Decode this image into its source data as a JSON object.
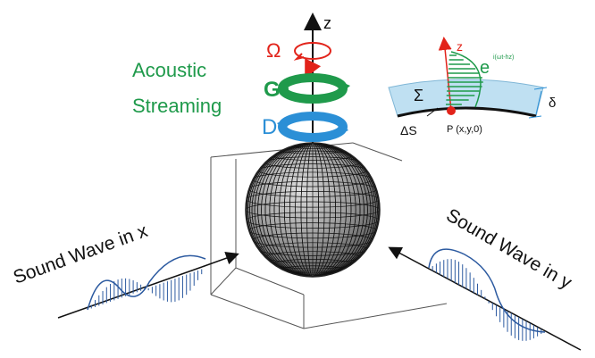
{
  "labels": {
    "acoustic": "Acoustic",
    "streaming": "Streaming",
    "omega": "Ω",
    "g": "G",
    "d": "D",
    "z_main": "z",
    "z_inset": "z",
    "sigma": "Σ",
    "delta_s": "ΔS",
    "point_p": "P (x,y,0)",
    "delta": "δ",
    "exp_base": "e",
    "exp_power": "i(ωt-hz)",
    "wave_x": "Sound Wave in x",
    "wave_y": "Sound Wave in y"
  },
  "colors": {
    "omega": "#e2231a",
    "g": "#1f9a4b",
    "d": "#2b8fd6",
    "acoustic_text": "#1f9a4b",
    "inset_band": "#bfe0f2",
    "inset_hatch": "#1f9a4b",
    "wave_fill": "#2c5aa0",
    "sphere_grid": "#111111"
  },
  "icons": {
    "omega_loop": "rotation-arrow-icon",
    "g_loop": "rotation-arrow-icon",
    "d_loop": "rotation-arrow-icon"
  }
}
